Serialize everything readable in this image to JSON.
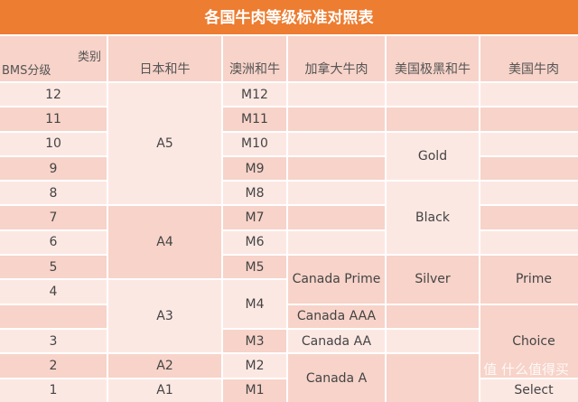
{
  "title": "各国牛肉等级标准对照表",
  "header": {
    "corner_top": "类别",
    "corner_bottom": "BMS分级",
    "japan": "日本和牛",
    "australia": "澳洲和牛",
    "canada": "加拿大牛肉",
    "us_black": "美国极黑和牛",
    "us": "美国牛肉"
  },
  "bms": [
    "12",
    "11",
    "10",
    "9",
    "8",
    "7",
    "6",
    "5",
    "4",
    "",
    "3",
    "2",
    "1"
  ],
  "japan": [
    "A5",
    "A4",
    "A3",
    "A2",
    "A1"
  ],
  "australia": [
    "M12",
    "M11",
    "M10",
    "M9",
    "M8",
    "M7",
    "M6",
    "M5",
    "M4",
    "M3",
    "M2",
    "M1"
  ],
  "canada": [
    "Canada Prime",
    "Canada AAA",
    "Canada AA",
    "Canada A"
  ],
  "us_black": [
    "Gold",
    "Black",
    "Silver"
  ],
  "us": [
    "Prime",
    "Choice",
    "Select"
  ],
  "watermark": "值 什么值得买"
}
